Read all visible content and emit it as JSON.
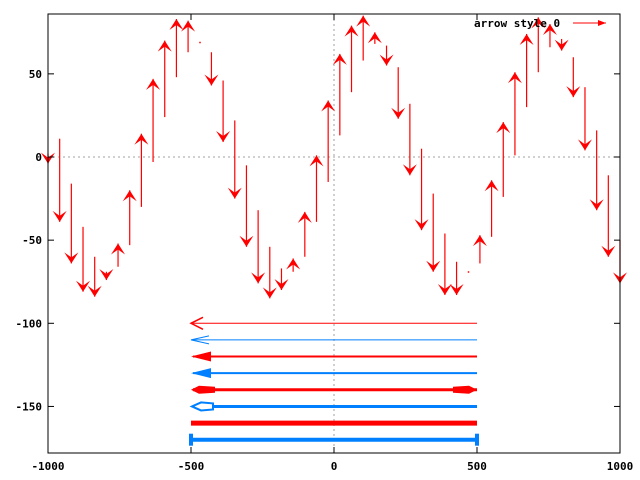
{
  "chart_data": {
    "type": "vectors",
    "title": "",
    "xlabel": "",
    "ylabel": "",
    "xlim": [
      -1000,
      1000
    ],
    "ylim": [
      -178,
      86
    ],
    "grid": "zero-axes dotted",
    "x_ticks": [
      -1000,
      -500,
      0,
      500,
      1000
    ],
    "y_ticks": [
      50,
      0,
      -50,
      -100,
      -150
    ],
    "x_tick_labels": [
      "-1000",
      "-500",
      "0",
      "500",
      "1000"
    ],
    "y_tick_labels": [
      "50",
      "0",
      "-50",
      "-100",
      "-150"
    ],
    "legend": {
      "position": "top-right",
      "entries": [
        "arrow style 0"
      ]
    },
    "colors": {
      "red": "#ff0000",
      "blue": "#0080ff",
      "zero_axis": "#a0a0a0"
    },
    "wave_series": {
      "name": "arrow style 0",
      "x_start": -1000,
      "x_end": 1000,
      "arrows_from_to": [
        [
          2,
          -4
        ],
        [
          11,
          -39
        ],
        [
          -16,
          -64
        ],
        [
          -42,
          -81
        ],
        [
          -60,
          -84
        ],
        [
          -69,
          -74
        ],
        [
          -66,
          -52
        ],
        [
          -53,
          -20
        ],
        [
          -30,
          14
        ],
        [
          -3,
          47
        ],
        [
          24,
          70
        ],
        [
          48,
          83
        ],
        [
          63,
          82
        ],
        [
          69,
          69
        ],
        [
          63,
          43
        ],
        [
          46,
          9
        ],
        [
          22,
          -25
        ],
        [
          -5,
          -54
        ],
        [
          -32,
          -76
        ],
        [
          -54,
          -85
        ],
        [
          -67,
          -80
        ],
        [
          -69,
          -61
        ],
        [
          -60,
          -33
        ],
        [
          -39,
          1
        ],
        [
          -15,
          34
        ],
        [
          13,
          62
        ],
        [
          39,
          79
        ],
        [
          58,
          85
        ],
        [
          68,
          75
        ],
        [
          67,
          55
        ],
        [
          54,
          23
        ],
        [
          32,
          -11
        ],
        [
          5,
          -44
        ],
        [
          -22,
          -69
        ],
        [
          -46,
          -83
        ],
        [
          -63,
          -83
        ],
        [
          -69,
          -69
        ],
        [
          -64,
          -47
        ],
        [
          -48,
          -14
        ],
        [
          -24,
          21
        ],
        [
          1,
          51
        ],
        [
          30,
          74
        ],
        [
          51,
          84
        ],
        [
          66,
          80
        ],
        [
          71,
          64
        ],
        [
          60,
          36
        ],
        [
          42,
          4
        ],
        [
          16,
          -32
        ],
        [
          -11,
          -60
        ],
        [
          -50,
          -76
        ]
      ]
    },
    "style_arrows": [
      {
        "y": -100,
        "x_from": 500,
        "x_to": -500,
        "color": "red",
        "width": 1,
        "head": "open"
      },
      {
        "y": -110,
        "x_from": 500,
        "x_to": -500,
        "color": "blue",
        "width": 1,
        "head": "open-empty"
      },
      {
        "y": -120,
        "x_from": 500,
        "x_to": -500,
        "color": "red",
        "width": 2,
        "head": "filled"
      },
      {
        "y": -130,
        "x_from": 500,
        "x_to": -500,
        "color": "blue",
        "width": 2,
        "head": "filled"
      },
      {
        "y": -140,
        "x_from": 500,
        "x_to": -500,
        "color": "red",
        "width": 3,
        "head": "filled-both"
      },
      {
        "y": -150,
        "x_from": 500,
        "x_to": -500,
        "color": "blue",
        "width": 3,
        "head": "empty"
      },
      {
        "y": -160,
        "x_from": 500,
        "x_to": -500,
        "color": "red",
        "width": 4,
        "head": "none"
      },
      {
        "y": -170,
        "x_from": 500,
        "x_to": -500,
        "color": "blue",
        "width": 4,
        "head": "bar"
      }
    ]
  }
}
